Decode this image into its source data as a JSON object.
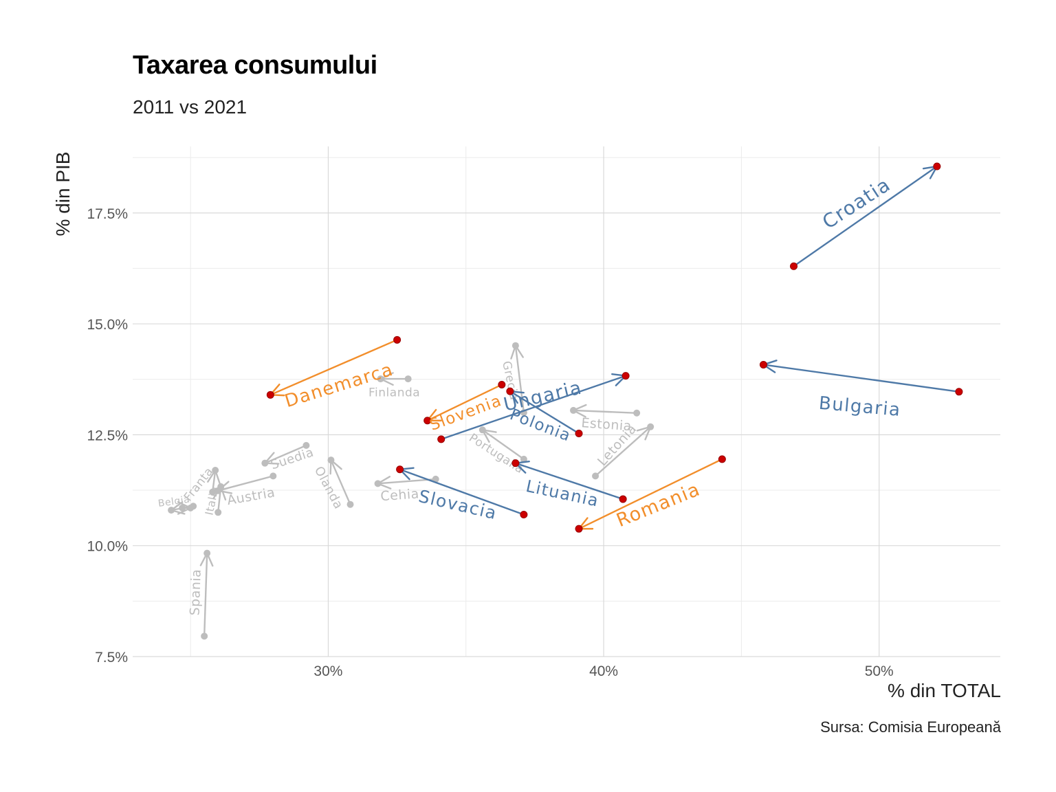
{
  "title": "Taxarea consumului",
  "subtitle": "2011 vs 2021",
  "caption": "Sursa: Comisia Europeană",
  "colors": {
    "highlight_blue": "#4e79a7",
    "highlight_orange": "#f28e2b",
    "background_grey": "#bdbdbd",
    "point_red": "#cc0000"
  },
  "chart_data": {
    "type": "scatter",
    "title": "Taxarea consumului",
    "subtitle": "2011 vs 2021",
    "xlabel": "% din TOTAL",
    "ylabel": "% din PIB",
    "xlim": [
      22.9,
      54.4
    ],
    "ylim": [
      7.5,
      19.0
    ],
    "x_ticks": [
      30,
      40,
      50
    ],
    "x_tick_labels": [
      "30%",
      "40%",
      "50%"
    ],
    "y_ticks": [
      7.5,
      10.0,
      12.5,
      15.0,
      17.5
    ],
    "y_tick_labels": [
      "7.5%",
      "10.0%",
      "12.5%",
      "15.0%",
      "17.5%"
    ],
    "grid": true,
    "legend": "none",
    "series": [
      {
        "name": "Croatia",
        "group": "blue",
        "x_2011": 46.9,
        "y_2011": 16.3,
        "x_2021": 52.1,
        "y_2021": 18.55
      },
      {
        "name": "Bulgaria",
        "group": "blue",
        "x_2011": 52.9,
        "y_2011": 13.47,
        "x_2021": 45.8,
        "y_2021": 14.08
      },
      {
        "name": "Ungaria",
        "group": "blue",
        "x_2011": 34.1,
        "y_2011": 12.4,
        "x_2021": 40.8,
        "y_2021": 13.83
      },
      {
        "name": "Polonia",
        "group": "blue",
        "x_2011": 39.1,
        "y_2011": 12.53,
        "x_2021": 36.6,
        "y_2021": 13.48
      },
      {
        "name": "Lituania",
        "group": "blue",
        "x_2011": 40.7,
        "y_2011": 11.05,
        "x_2021": 36.8,
        "y_2021": 11.86
      },
      {
        "name": "Slovacia",
        "group": "blue",
        "x_2011": 37.1,
        "y_2011": 10.7,
        "x_2021": 32.6,
        "y_2021": 11.72
      },
      {
        "name": "Danemarca",
        "group": "orange",
        "x_2011": 32.5,
        "y_2011": 14.64,
        "x_2021": 27.9,
        "y_2021": 13.4
      },
      {
        "name": "Slovenia",
        "group": "orange",
        "x_2011": 36.3,
        "y_2011": 13.63,
        "x_2021": 33.6,
        "y_2021": 12.82
      },
      {
        "name": "Romania",
        "group": "orange",
        "x_2011": 44.3,
        "y_2011": 11.95,
        "x_2021": 39.1,
        "y_2021": 10.38
      },
      {
        "name": "Finlanda",
        "group": "grey",
        "x_2011": 32.9,
        "y_2011": 13.76,
        "x_2021": 31.9,
        "y_2021": 13.76
      },
      {
        "name": "Grecia",
        "group": "grey",
        "x_2011": 37.1,
        "y_2011": 13.0,
        "x_2021": 36.8,
        "y_2021": 14.51
      },
      {
        "name": "Estonia",
        "group": "grey",
        "x_2011": 41.2,
        "y_2011": 12.99,
        "x_2021": 38.9,
        "y_2021": 13.05
      },
      {
        "name": "Letonia",
        "group": "grey",
        "x_2011": 39.7,
        "y_2011": 11.57,
        "x_2021": 41.7,
        "y_2021": 12.68
      },
      {
        "name": "Portugalia",
        "group": "grey",
        "x_2011": 37.1,
        "y_2011": 11.95,
        "x_2021": 35.6,
        "y_2021": 12.61
      },
      {
        "name": "Cehia",
        "group": "grey",
        "x_2011": 33.9,
        "y_2011": 11.5,
        "x_2021": 31.8,
        "y_2021": 11.4
      },
      {
        "name": "Olanda",
        "group": "grey",
        "x_2011": 30.8,
        "y_2011": 10.93,
        "x_2021": 30.1,
        "y_2021": 11.93
      },
      {
        "name": "Suedia",
        "group": "grey",
        "x_2011": 29.2,
        "y_2011": 12.26,
        "x_2021": 27.7,
        "y_2021": 11.86
      },
      {
        "name": "Austria",
        "group": "grey",
        "x_2011": 28.0,
        "y_2011": 11.57,
        "x_2021": 26.0,
        "y_2021": 11.24
      },
      {
        "name": "Franta",
        "group": "grey",
        "x_2011": 25.8,
        "y_2011": 11.21,
        "x_2021": 25.9,
        "y_2021": 11.7
      },
      {
        "name": "Italia",
        "group": "grey",
        "x_2011": 26.0,
        "y_2011": 10.75,
        "x_2021": 26.1,
        "y_2021": 11.33
      },
      {
        "name": "Belgia",
        "group": "grey",
        "x_2011": 25.1,
        "y_2011": 10.89,
        "x_2021": 24.3,
        "y_2021": 10.8
      },
      {
        "name": "",
        "group": "grey",
        "x_2011": 24.7,
        "y_2011": 10.85,
        "x_2021": 25.0,
        "y_2021": 10.85
      },
      {
        "name": "Spania",
        "group": "grey",
        "x_2011": 25.5,
        "y_2011": 7.96,
        "x_2021": 25.6,
        "y_2021": 9.83
      }
    ],
    "labels": [
      {
        "text": "Croatia",
        "group": "blue",
        "x": 49.2,
        "y": 17.7,
        "angle": -33,
        "size": 28
      },
      {
        "text": "Bulgaria",
        "group": "blue",
        "x": 49.3,
        "y": 13.12,
        "angle": 5,
        "size": 26
      },
      {
        "text": "Ungaria",
        "group": "blue",
        "x": 37.8,
        "y": 13.35,
        "angle": -13,
        "size": 27
      },
      {
        "text": "Polonia",
        "group": "blue",
        "x": 37.7,
        "y": 12.7,
        "angle": 21,
        "size": 23
      },
      {
        "text": "Lituania",
        "group": "blue",
        "x": 38.5,
        "y": 11.16,
        "angle": 12,
        "size": 24
      },
      {
        "text": "Slovacia",
        "group": "blue",
        "x": 34.7,
        "y": 10.9,
        "angle": 13,
        "size": 25
      },
      {
        "text": "Danemarca",
        "group": "orange",
        "x": 30.4,
        "y": 13.6,
        "angle": -17,
        "size": 26
      },
      {
        "text": "Slovenia",
        "group": "orange",
        "x": 35.0,
        "y": 12.98,
        "angle": -20,
        "size": 23
      },
      {
        "text": "Romania",
        "group": "orange",
        "x": 42.0,
        "y": 10.9,
        "angle": -22,
        "size": 27
      },
      {
        "text": "Finlanda",
        "group": "grey",
        "x": 32.4,
        "y": 13.44,
        "angle": 0,
        "size": 17
      },
      {
        "text": "Grecia",
        "group": "grey",
        "x": 36.6,
        "y": 13.72,
        "angle": 78,
        "size": 17
      },
      {
        "text": "Estonia",
        "group": "grey",
        "x": 40.1,
        "y": 12.72,
        "angle": 4,
        "size": 19
      },
      {
        "text": "Letonia",
        "group": "grey",
        "x": 40.5,
        "y": 12.26,
        "angle": -48,
        "size": 19
      },
      {
        "text": "Portugalia",
        "group": "grey",
        "x": 36.1,
        "y": 12.07,
        "angle": 33,
        "size": 17
      },
      {
        "text": "Cehia",
        "group": "grey",
        "x": 32.6,
        "y": 11.13,
        "angle": -4,
        "size": 19
      },
      {
        "text": "Olanda",
        "group": "grey",
        "x": 30.0,
        "y": 11.3,
        "angle": 62,
        "size": 18
      },
      {
        "text": "Suedia",
        "group": "grey",
        "x": 28.7,
        "y": 11.95,
        "angle": -18,
        "size": 18
      },
      {
        "text": "Austria",
        "group": "grey",
        "x": 27.2,
        "y": 11.1,
        "angle": -10,
        "size": 19
      },
      {
        "text": "Franta",
        "group": "grey",
        "x": 25.3,
        "y": 11.38,
        "angle": -52,
        "size": 17
      },
      {
        "text": "Italia",
        "group": "grey",
        "x": 25.8,
        "y": 11.01,
        "angle": -78,
        "size": 16
      },
      {
        "text": "Belgia",
        "group": "grey",
        "x": 24.4,
        "y": 10.99,
        "angle": -8,
        "size": 14
      },
      {
        "text": "Spania",
        "group": "grey",
        "x": 25.2,
        "y": 8.95,
        "angle": -88,
        "size": 19
      }
    ]
  }
}
